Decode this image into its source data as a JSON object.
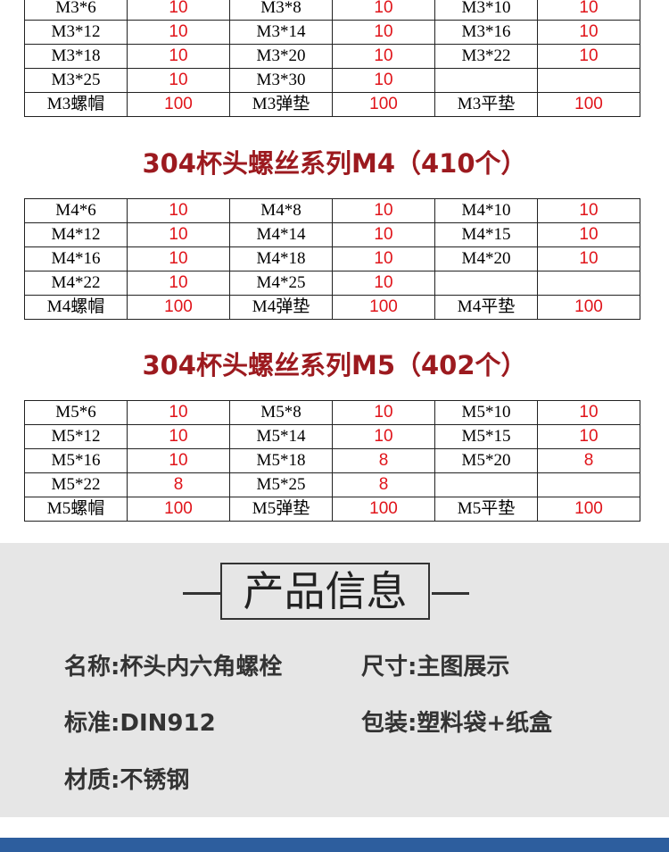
{
  "tables": [
    {
      "rows": [
        [
          "M3*6",
          "10",
          "M3*8",
          "10",
          "M3*10",
          "10"
        ],
        [
          "M3*12",
          "10",
          "M3*14",
          "10",
          "M3*16",
          "10"
        ],
        [
          "M3*18",
          "10",
          "M3*20",
          "10",
          "M3*22",
          "10"
        ],
        [
          "M3*25",
          "10",
          "M3*30",
          "10",
          null,
          null
        ],
        [
          "M3螺帽",
          "100",
          "M3弹垫",
          "100",
          "M3平垫",
          "100"
        ]
      ]
    },
    {
      "title": "304杯头螺丝系列M4（410个）",
      "rows": [
        [
          "M4*6",
          "10",
          "M4*8",
          "10",
          "M4*10",
          "10"
        ],
        [
          "M4*12",
          "10",
          "M4*14",
          "10",
          "M4*15",
          "10"
        ],
        [
          "M4*16",
          "10",
          "M4*18",
          "10",
          "M4*20",
          "10"
        ],
        [
          "M4*22",
          "10",
          "M4*25",
          "10",
          null,
          null
        ],
        [
          "M4螺帽",
          "100",
          "M4弹垫",
          "100",
          "M4平垫",
          "100"
        ]
      ]
    },
    {
      "title": "304杯头螺丝系列M5（402个）",
      "rows": [
        [
          "M5*6",
          "10",
          "M5*8",
          "10",
          "M5*10",
          "10"
        ],
        [
          "M5*12",
          "10",
          "M5*14",
          "10",
          "M5*15",
          "10"
        ],
        [
          "M5*16",
          "10",
          "M5*18",
          "8",
          "M5*20",
          "8"
        ],
        [
          "M5*22",
          "8",
          "M5*25",
          "8",
          null,
          null
        ],
        [
          "M5螺帽",
          "100",
          "M5弹垫",
          "100",
          "M5平垫",
          "100"
        ]
      ]
    }
  ],
  "product_info": {
    "heading": "产品信息",
    "items": [
      "名称:杯头内六角螺栓",
      "尺寸:主图展示",
      "标准:DIN912",
      "包装:塑料袋+纸盒",
      "材质:不锈钢"
    ]
  }
}
